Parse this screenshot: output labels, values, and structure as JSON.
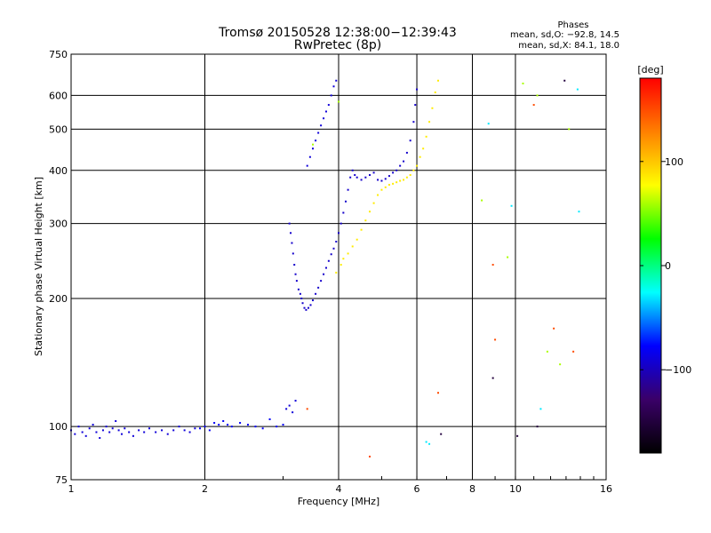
{
  "chart_data": {
    "type": "scatter",
    "title": "Tromsø 20150528 12:38:00−12:39:43",
    "subtitle": "RwPretec (8p)",
    "xlabel": "Frequency [MHz]",
    "ylabel": "Stationary phase Virtual Height [km]",
    "x_scale": "log",
    "y_scale": "log",
    "xlim": [
      1,
      16
    ],
    "ylim": [
      75,
      750
    ],
    "x_ticks": [
      1,
      2,
      4,
      6,
      8,
      10,
      16
    ],
    "x_tick_labels": [
      "1",
      "2",
      "4",
      "6",
      "8",
      "10",
      "16"
    ],
    "y_ticks": [
      75,
      100,
      200,
      300,
      400,
      500,
      600,
      750
    ],
    "y_tick_labels": [
      "75",
      "100",
      "200",
      "300",
      "400",
      "500",
      "600",
      "750"
    ],
    "grid": true,
    "phase_note": {
      "title": "Phases",
      "line1": "mean, sd,O: −92.8, 14.5",
      "line2": "mean, sd,X:  84.1, 18.0"
    },
    "colorbar": {
      "unit": "deg",
      "range": [
        -180,
        180
      ],
      "ticks": [
        100,
        0,
        -100
      ],
      "tick_labels": [
        "100",
        "0",
        "−100"
      ],
      "stops": [
        "#000000",
        "#3a0068",
        "#0000ff",
        "#00ffff",
        "#00ff00",
        "#ffff00",
        "#ff8000",
        "#ff0000"
      ]
    },
    "series": [
      {
        "segments": [
          {
            "phase": -90,
            "points": [
              [
                1.0,
                98
              ],
              [
                1.02,
                96
              ],
              [
                1.04,
                100
              ],
              [
                1.06,
                97
              ],
              [
                1.08,
                95
              ],
              [
                1.1,
                99
              ],
              [
                1.12,
                101
              ],
              [
                1.14,
                97
              ],
              [
                1.16,
                94
              ],
              [
                1.18,
                98
              ],
              [
                1.2,
                100
              ],
              [
                1.22,
                97
              ],
              [
                1.24,
                99
              ],
              [
                1.26,
                103
              ],
              [
                1.28,
                98
              ],
              [
                1.3,
                96
              ],
              [
                1.32,
                99
              ],
              [
                1.35,
                97
              ],
              [
                1.38,
                95
              ],
              [
                1.42,
                98
              ],
              [
                1.46,
                97
              ],
              [
                1.5,
                99
              ],
              [
                1.55,
                97
              ],
              [
                1.6,
                98
              ],
              [
                1.65,
                96
              ],
              [
                1.7,
                98
              ],
              [
                1.75,
                100
              ],
              [
                1.8,
                98
              ],
              [
                1.85,
                97
              ],
              [
                1.9,
                99
              ]
            ]
          },
          {
            "phase": -80,
            "points": [
              [
                1.95,
                99
              ],
              [
                2.0,
                100
              ],
              [
                2.05,
                98
              ],
              [
                2.1,
                102
              ],
              [
                2.15,
                101
              ],
              [
                2.2,
                103
              ],
              [
                2.25,
                101
              ],
              [
                2.3,
                100
              ],
              [
                2.4,
                102
              ],
              [
                2.5,
                101
              ],
              [
                2.6,
                100
              ],
              [
                2.7,
                99
              ],
              [
                2.8,
                104
              ],
              [
                2.9,
                100
              ],
              [
                3.0,
                101
              ]
            ]
          },
          {
            "phase": -90,
            "points": [
              [
                3.05,
                110
              ],
              [
                3.1,
                112
              ],
              [
                3.15,
                108
              ],
              [
                3.2,
                115
              ]
            ]
          },
          {
            "phase": -95,
            "points": [
              [
                3.1,
                300
              ],
              [
                3.12,
                285
              ],
              [
                3.14,
                270
              ],
              [
                3.16,
                255
              ],
              [
                3.18,
                240
              ],
              [
                3.2,
                228
              ],
              [
                3.22,
                220
              ],
              [
                3.25,
                210
              ],
              [
                3.28,
                205
              ],
              [
                3.3,
                200
              ],
              [
                3.32,
                195
              ],
              [
                3.35,
                190
              ],
              [
                3.38,
                188
              ],
              [
                3.42,
                190
              ],
              [
                3.46,
                193
              ],
              [
                3.5,
                198
              ],
              [
                3.55,
                205
              ],
              [
                3.6,
                212
              ],
              [
                3.65,
                220
              ],
              [
                3.7,
                228
              ],
              [
                3.75,
                236
              ],
              [
                3.8,
                245
              ],
              [
                3.85,
                254
              ],
              [
                3.9,
                262
              ],
              [
                3.95,
                272
              ],
              [
                4.0,
                285
              ],
              [
                4.05,
                300
              ],
              [
                4.1,
                318
              ],
              [
                4.15,
                338
              ],
              [
                4.2,
                360
              ],
              [
                4.25,
                385
              ],
              [
                4.3,
                400
              ],
              [
                4.35,
                390
              ],
              [
                4.4,
                385
              ],
              [
                4.5,
                380
              ],
              [
                4.6,
                385
              ],
              [
                4.7,
                390
              ],
              [
                4.8,
                395
              ],
              [
                4.9,
                380
              ],
              [
                5.0,
                378
              ],
              [
                5.1,
                382
              ],
              [
                5.2,
                388
              ],
              [
                5.3,
                395
              ],
              [
                5.4,
                400
              ],
              [
                5.5,
                410
              ],
              [
                5.6,
                420
              ],
              [
                5.7,
                440
              ],
              [
                5.8,
                470
              ],
              [
                5.9,
                520
              ],
              [
                5.95,
                570
              ],
              [
                6.0,
                620
              ]
            ]
          },
          {
            "phase": -90,
            "points": [
              [
                3.4,
                410
              ],
              [
                3.45,
                430
              ],
              [
                3.5,
                450
              ],
              [
                3.55,
                470
              ],
              [
                3.6,
                490
              ],
              [
                3.65,
                510
              ],
              [
                3.7,
                530
              ],
              [
                3.75,
                550
              ],
              [
                3.8,
                570
              ],
              [
                3.85,
                600
              ],
              [
                3.9,
                630
              ],
              [
                3.95,
                650
              ]
            ]
          }
        ]
      },
      {
        "segments": [
          {
            "phase": 85,
            "points": [
              [
                3.95,
                230
              ],
              [
                4.05,
                240
              ],
              [
                4.1,
                248
              ],
              [
                4.2,
                255
              ],
              [
                4.3,
                265
              ],
              [
                4.4,
                275
              ],
              [
                4.5,
                290
              ],
              [
                4.6,
                305
              ],
              [
                4.7,
                320
              ],
              [
                4.8,
                335
              ],
              [
                4.9,
                350
              ],
              [
                5.0,
                360
              ],
              [
                5.1,
                365
              ],
              [
                5.2,
                370
              ],
              [
                5.3,
                372
              ],
              [
                5.4,
                375
              ],
              [
                5.5,
                378
              ],
              [
                5.6,
                380
              ],
              [
                5.7,
                385
              ],
              [
                5.8,
                390
              ],
              [
                5.9,
                400
              ],
              [
                6.0,
                410
              ],
              [
                6.1,
                430
              ],
              [
                6.2,
                450
              ],
              [
                6.3,
                480
              ],
              [
                6.4,
                520
              ],
              [
                6.5,
                560
              ],
              [
                6.6,
                610
              ],
              [
                6.7,
                650
              ]
            ]
          }
        ]
      },
      {
        "segments": [
          {
            "phase": 60,
            "points": [
              [
                3.5,
                460
              ],
              [
                4.0,
                580
              ],
              [
                8.4,
                340
              ],
              [
                9.6,
                250
              ],
              [
                10.4,
                640
              ],
              [
                11.2,
                600
              ],
              [
                11.8,
                150
              ],
              [
                12.6,
                140
              ],
              [
                13.2,
                500
              ]
            ]
          },
          {
            "phase": 150,
            "points": [
              [
                3.4,
                110
              ],
              [
                8.9,
                240
              ],
              [
                9.0,
                160
              ],
              [
                11.0,
                570
              ],
              [
                12.2,
                170
              ],
              [
                13.5,
                150
              ],
              [
                6.7,
                120
              ],
              [
                4.7,
                85
              ]
            ]
          },
          {
            "phase": -30,
            "points": [
              [
                6.3,
                92
              ],
              [
                6.4,
                91
              ],
              [
                8.7,
                515
              ],
              [
                9.8,
                330
              ],
              [
                11.4,
                110
              ],
              [
                13.9,
                320
              ],
              [
                13.8,
                620
              ]
            ]
          },
          {
            "phase": -150,
            "points": [
              [
                6.8,
                96
              ],
              [
                8.9,
                130
              ],
              [
                10.1,
                95
              ],
              [
                12.9,
                650
              ],
              [
                11.2,
                100
              ]
            ]
          }
        ]
      }
    ]
  }
}
